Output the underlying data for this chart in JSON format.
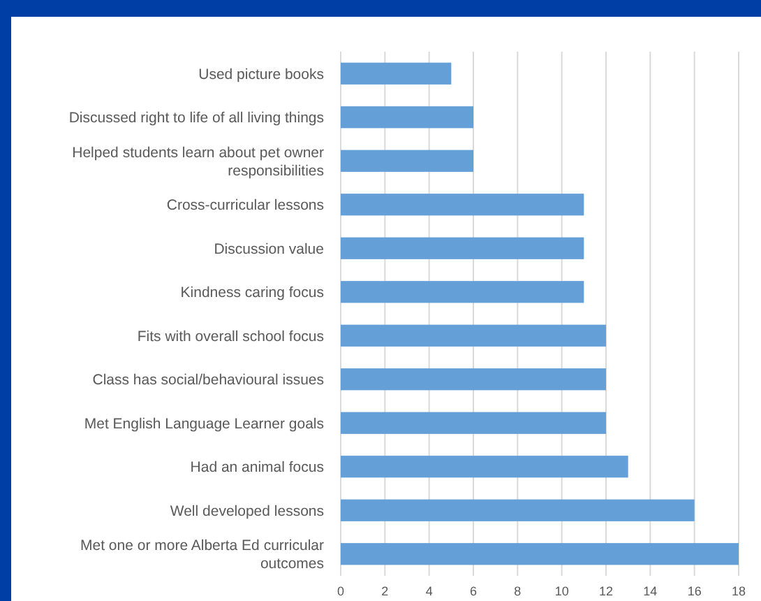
{
  "chart_data": {
    "type": "bar",
    "orientation": "horizontal",
    "categories": [
      "Used picture books",
      "Discussed right to life of all living things",
      "Helped students learn about pet owner responsibilities",
      "Cross-curricular lessons",
      "Discussion value",
      "Kindness caring focus",
      "Fits with overall school focus",
      "Class has social/behavioural issues",
      "Met English Language Learner goals",
      "Had an animal focus",
      "Well developed lessons ",
      "Met one or more Alberta Ed curricular outcomes"
    ],
    "values": [
      5,
      6,
      6,
      11,
      11,
      11,
      12,
      12,
      12,
      13,
      16,
      18
    ],
    "color": "#659fd8",
    "xlim": [
      0,
      18
    ],
    "xticks": [
      0,
      2,
      4,
      6,
      8,
      10,
      12,
      14,
      16,
      18
    ],
    "grid": "x"
  }
}
